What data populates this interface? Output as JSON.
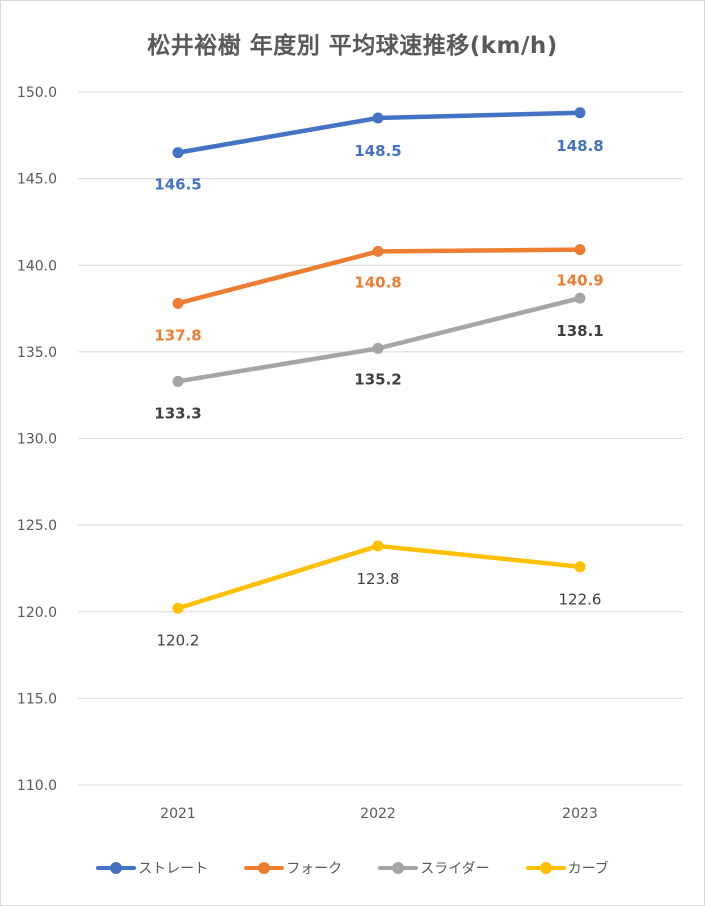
{
  "chart_data": {
    "type": "line",
    "title": "松井裕樹 年度別 平均球速推移(km/h)",
    "categories": [
      "2021",
      "2022",
      "2023"
    ],
    "ylim": [
      110.0,
      150.0
    ],
    "ytick_step": 5,
    "yticks": [
      "150.0",
      "145.0",
      "140.0",
      "135.0",
      "130.0",
      "125.0",
      "120.0",
      "115.0",
      "110.0"
    ],
    "grid": true,
    "legend_position": "bottom",
    "series": [
      {
        "name": "ストレート",
        "color": "#4472C4",
        "values": [
          146.5,
          148.5,
          148.8
        ],
        "labels": [
          "146.5",
          "148.5",
          "148.8"
        ],
        "label_bold": true,
        "label_color": "#4472C4"
      },
      {
        "name": "フォーク",
        "color": "#ED7D31",
        "values": [
          137.8,
          140.8,
          140.9
        ],
        "labels": [
          "137.8",
          "140.8",
          "140.9"
        ],
        "label_bold": true,
        "label_color": "#ED7D31"
      },
      {
        "name": "スライダー",
        "color": "#A5A5A5",
        "values": [
          133.3,
          135.2,
          138.1
        ],
        "labels": [
          "133.3",
          "135.2",
          "138.1"
        ],
        "label_bold": true,
        "label_color": "#404040"
      },
      {
        "name": "カーブ",
        "color": "#FFC000",
        "values": [
          120.2,
          123.8,
          122.6
        ],
        "labels": [
          "120.2",
          "123.8",
          "122.6"
        ],
        "label_bold": false,
        "label_color": "#404040"
      }
    ]
  }
}
